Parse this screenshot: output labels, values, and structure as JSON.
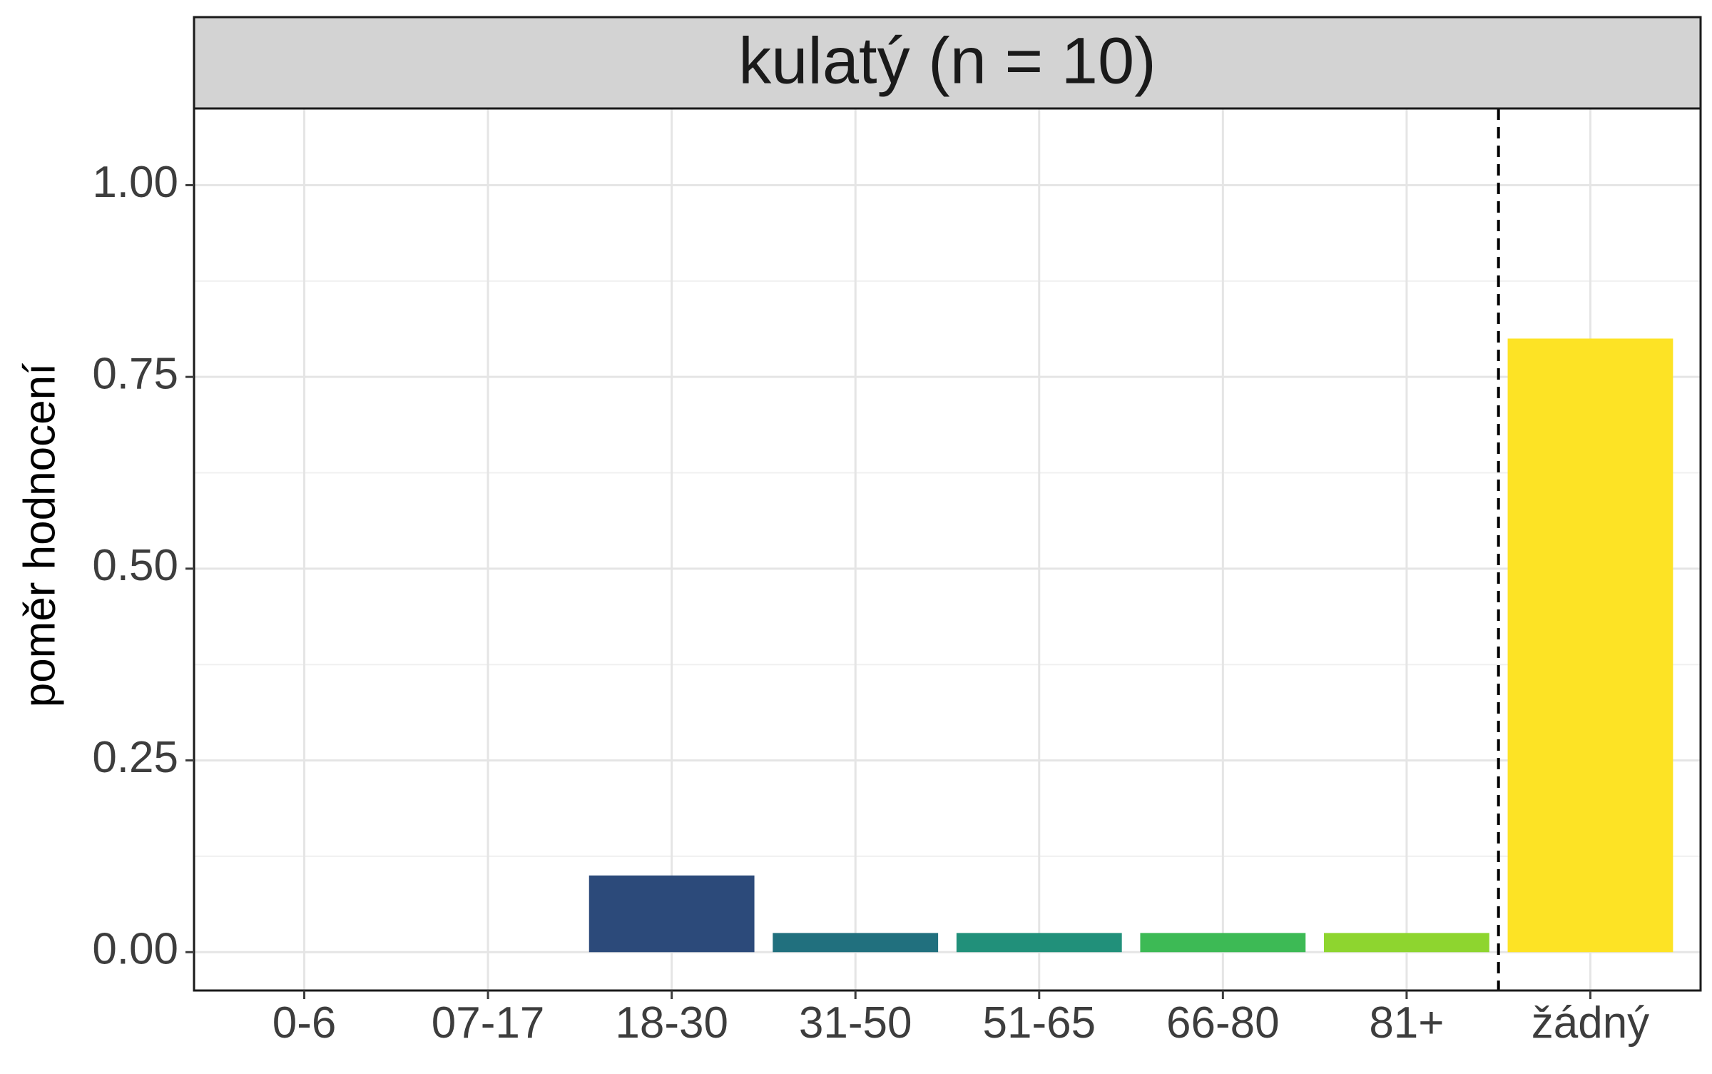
{
  "chart_data": {
    "type": "bar",
    "facet_title": "kulatý (n = 10)",
    "ylabel": "poměr hodnocení",
    "xlabel": "",
    "categories": [
      "0-6",
      "07-17",
      "18-30",
      "31-50",
      "51-65",
      "66-80",
      "81+",
      "žádný"
    ],
    "values": [
      0,
      0,
      0.1,
      0.025,
      0.025,
      0.025,
      0.025,
      0.8
    ],
    "bar_colors": [
      "#440154",
      "#46337E",
      "#2C4A7A",
      "#21707E",
      "#21907A",
      "#3DBA55",
      "#8ED52F",
      "#FDE325"
    ],
    "ylim": [
      -0.05,
      1.1
    ],
    "y_ticks": [
      0.0,
      0.25,
      0.5,
      0.75,
      1.0
    ],
    "y_tick_labels": [
      "0.00",
      "0.25",
      "0.50",
      "0.75",
      "1.00"
    ],
    "vline_after_category": "81+",
    "vline_style": "dashed",
    "grid": true,
    "colors": {
      "panel_border": "#1a1a1a",
      "strip_fill": "#d3d3d3",
      "grid_major": "#e5e5e5",
      "grid_minor": "#f0f0f0",
      "tick_text": "#3d3d3d",
      "title_text": "#1a1a1a"
    }
  }
}
